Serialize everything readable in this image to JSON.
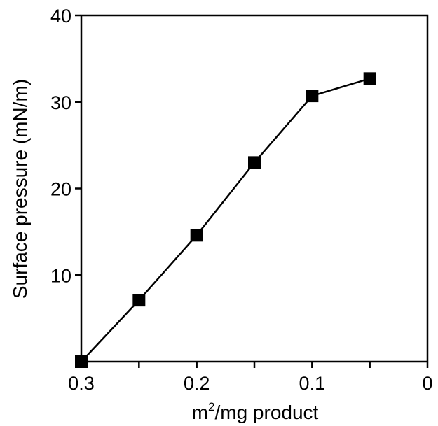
{
  "chart_data": {
    "type": "line",
    "title": "",
    "xlabel_parts": {
      "base": "m",
      "sup": "2",
      "rest": "/mg product"
    },
    "ylabel": "Surface pressure (mN/m)",
    "x_reversed": true,
    "xlim": [
      0.3,
      0
    ],
    "ylim": [
      0,
      40
    ],
    "x_ticks": [
      0.3,
      0.25,
      0.2,
      0.15,
      0.1,
      0.05,
      0
    ],
    "x_tick_labels": [
      "0.3",
      "",
      "0.2",
      "",
      "0.1",
      "",
      "0"
    ],
    "y_ticks": [
      10,
      20,
      30,
      40
    ],
    "y_tick_labels": [
      "10",
      "20",
      "30",
      "40"
    ],
    "grid": false,
    "legend": "none",
    "marker": "filled-square",
    "color": "#000000",
    "series": [
      {
        "x": [
          0.3,
          0.25,
          0.2,
          0.15,
          0.1,
          0.05
        ],
        "y": [
          0,
          7.1,
          14.6,
          23.0,
          30.7,
          32.7
        ]
      }
    ]
  }
}
